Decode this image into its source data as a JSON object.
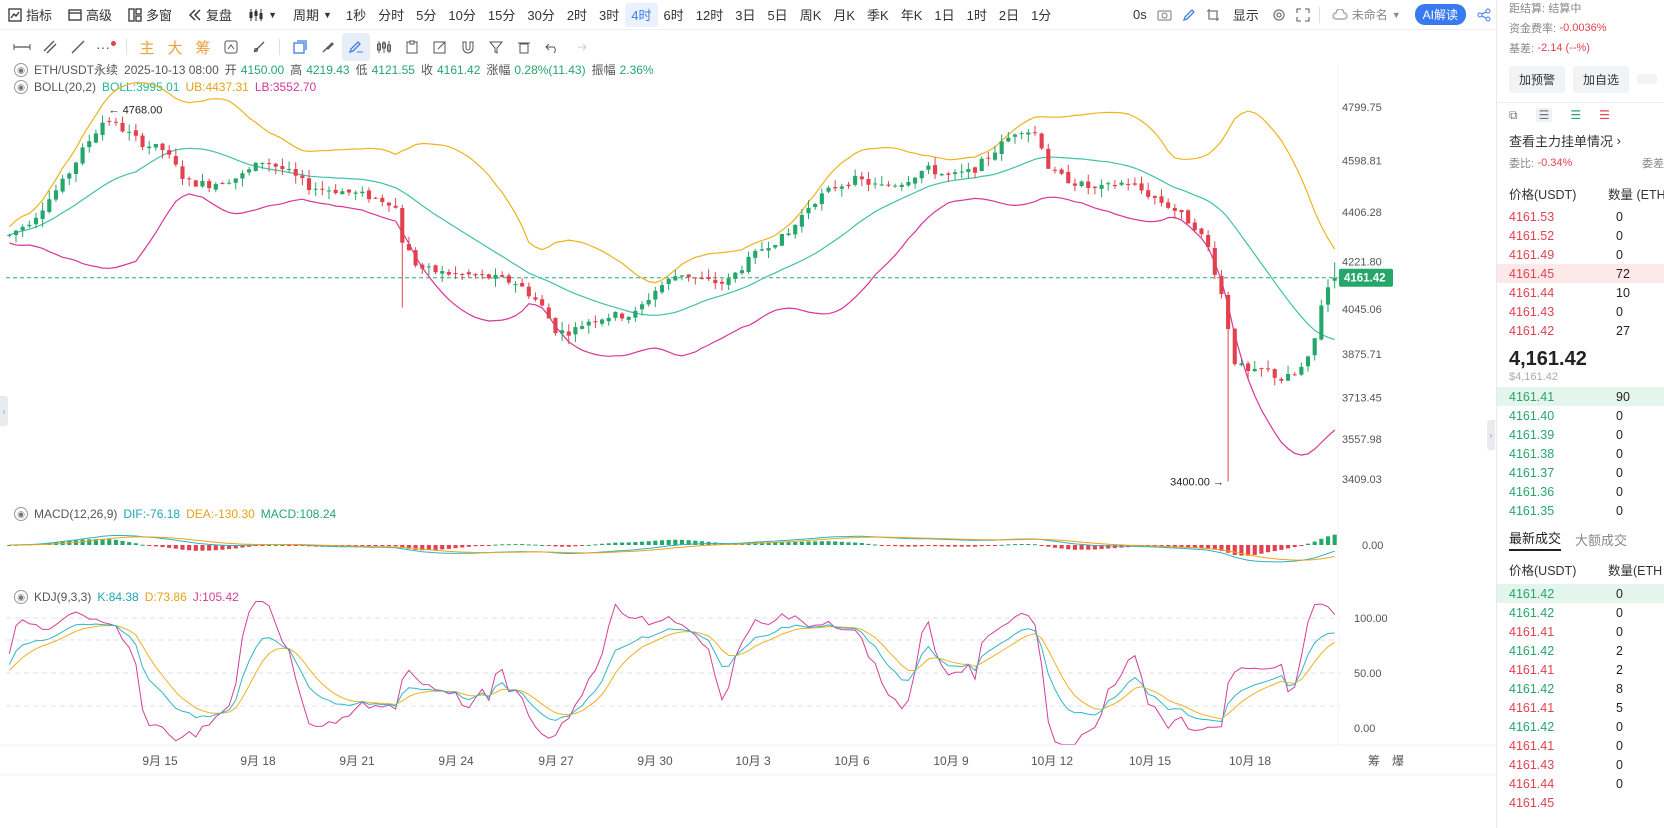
{
  "toolbar": {
    "indicators_label": "指标",
    "advanced_label": "高级",
    "multi_window_label": "多窗",
    "replay_label": "复盘",
    "period_label": "周期",
    "periods": [
      "1秒",
      "分时",
      "5分",
      "10分",
      "15分",
      "30分",
      "2时",
      "3时",
      "4时",
      "6时",
      "12时",
      "3日",
      "5日",
      "周K",
      "月K",
      "季K",
      "年K",
      "1日",
      "1时",
      "2日",
      "1分"
    ],
    "active_period": "4时",
    "timer": "0s",
    "display_label": "显示",
    "layout_name": "未命名",
    "ai_label": "AI解读"
  },
  "drawing_tools": {
    "trade_labels": [
      "主",
      "大",
      "筹"
    ]
  },
  "legend": {
    "symbol": "ETH/USDT永续",
    "datetime": "2025-10-13 08:00",
    "open_label": "开",
    "open": "4150.00",
    "high_label": "高",
    "high": "4219.43",
    "low_label": "低",
    "low": "4121.55",
    "close_label": "收",
    "close": "4161.42",
    "change_label": "涨幅",
    "change": "0.28%(11.43)",
    "amp_label": "振幅",
    "amp": "2.36%",
    "boll_name": "BOLL(20,2)",
    "boll": "BOLL:3995.01",
    "ub": "UB:4437.31",
    "lb": "LB:3552.70",
    "macd_name": "MACD(12,26,9)",
    "dif": "DIF:-76.18",
    "dea": "DEA:-130.30",
    "macd": "MACD:108.24",
    "kdj_name": "KDJ(9,3,3)",
    "k": "K:84.38",
    "d": "D:73.86",
    "j": "J:105.42"
  },
  "price_axis": [
    "4799.75",
    "4598.81",
    "4406.28",
    "4221.80",
    "4045.06",
    "3875.71",
    "3713.45",
    "3557.98",
    "3409.03"
  ],
  "last_price_tag": "4161.42",
  "high_marker": "4768.00",
  "low_marker": "3400.00",
  "macd_axis": [
    "0.00"
  ],
  "kdj_axis": [
    "100.00",
    "50.00",
    "0.00"
  ],
  "date_axis": [
    "9月 15",
    "9月 18",
    "9月 21",
    "9月 24",
    "9月 27",
    "9月 30",
    "10月 3",
    "10月 6",
    "10月 9",
    "10月 12",
    "10月 15",
    "10月 18"
  ],
  "date_axis_right": [
    "筹",
    "爆"
  ],
  "colors": {
    "up": "#25a66a",
    "down": "#e2424e",
    "boll_mid": "#3fc2a8",
    "boll_up": "#efb21e",
    "boll_lo": "#d9359a",
    "dif": "#2bb3c0",
    "dea": "#f0a21c",
    "k": "#2fb6c8",
    "d": "#f0b020",
    "j": "#d53d9b"
  },
  "right_panel": {
    "settle_label": "距结算:",
    "settle_value": "结算中",
    "funding_label": "资金费率:",
    "funding_value": "-0.0036%",
    "basis_label": "基差:",
    "basis_value": "-2.14 (--%)",
    "alert_button": "加预警",
    "watchlist_button": "加自选",
    "orderbook_title": "查看主力挂单情况",
    "ratio_label": "委比:",
    "ratio_value": "-0.34%",
    "ratio_right": "委差",
    "price_header": "价格(USDT)",
    "qty_header": "数量 (ETH",
    "asks": [
      {
        "price": "4161.53",
        "qty": "0"
      },
      {
        "price": "4161.52",
        "qty": "0"
      },
      {
        "price": "4161.49",
        "qty": "0"
      },
      {
        "price": "4161.45",
        "qty": "72"
      },
      {
        "price": "4161.44",
        "qty": "10"
      },
      {
        "price": "4161.43",
        "qty": "0"
      },
      {
        "price": "4161.42",
        "qty": "27"
      }
    ],
    "last_price": "4,161.42",
    "last_price_usd": "$4,161.42",
    "bids": [
      {
        "price": "4161.41",
        "qty": "90"
      },
      {
        "price": "4161.40",
        "qty": "0"
      },
      {
        "price": "4161.39",
        "qty": "0"
      },
      {
        "price": "4161.38",
        "qty": "0"
      },
      {
        "price": "4161.37",
        "qty": "0"
      },
      {
        "price": "4161.36",
        "qty": "0"
      },
      {
        "price": "4161.35",
        "qty": "0"
      }
    ],
    "trades_tab": "最新成交",
    "large_trades_tab": "大额成交",
    "trades_price_header": "价格(USDT)",
    "trades_qty_header": "数量(ETH",
    "trades": [
      {
        "price": "4161.42",
        "qty": "0",
        "side": "up"
      },
      {
        "price": "4161.42",
        "qty": "0",
        "side": "up"
      },
      {
        "price": "4161.41",
        "qty": "0",
        "side": "down"
      },
      {
        "price": "4161.42",
        "qty": "2",
        "side": "up"
      },
      {
        "price": "4161.41",
        "qty": "2",
        "side": "down"
      },
      {
        "price": "4161.42",
        "qty": "8",
        "side": "up"
      },
      {
        "price": "4161.41",
        "qty": "5",
        "side": "down"
      },
      {
        "price": "4161.42",
        "qty": "0",
        "side": "up"
      },
      {
        "price": "4161.41",
        "qty": "0",
        "side": "down"
      },
      {
        "price": "4161.43",
        "qty": "0",
        "side": "down"
      },
      {
        "price": "4161.44",
        "qty": "0",
        "side": "down"
      },
      {
        "price": "4161.45",
        "qty": "",
        "side": "down"
      }
    ]
  }
}
